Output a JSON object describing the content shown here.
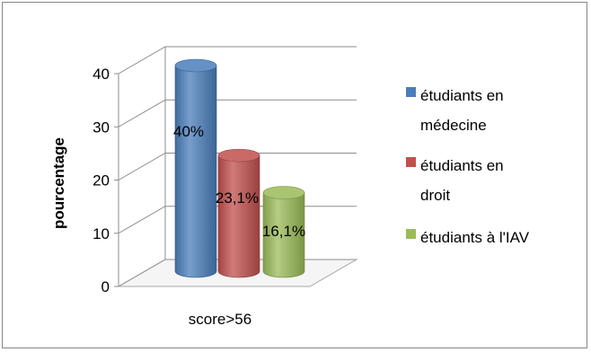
{
  "chart_data": {
    "type": "bar",
    "style": "3d-cylinder",
    "categories": [
      "score>56"
    ],
    "series": [
      {
        "name": "étudiants en médecine",
        "legend_lines": [
          "étudiants en",
          "médecine"
        ],
        "values": [
          40
        ],
        "label": "40%",
        "color": "#4a7ebb"
      },
      {
        "name": "étudiants en droit",
        "legend_lines": [
          "étudiants en",
          "droit"
        ],
        "values": [
          23.1
        ],
        "label": "23,1%",
        "color": "#c0504d"
      },
      {
        "name": "étudiants à l'IAV",
        "legend_lines": [
          "étudiants à l'IAV"
        ],
        "values": [
          16.1
        ],
        "label": "16,1%",
        "color": "#9bbb59"
      }
    ],
    "ylabel": "pourcentage",
    "xlabel": "",
    "ylim": [
      0,
      40
    ],
    "yticks": [
      0,
      10,
      20,
      30,
      40
    ],
    "grid": true,
    "legend": "right"
  }
}
